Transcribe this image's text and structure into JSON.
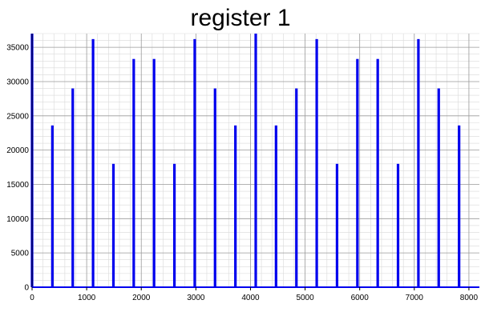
{
  "chart_data": {
    "type": "bar",
    "title": "register 1",
    "xlabel": "",
    "ylabel": "",
    "xlim": [
      0,
      8192
    ],
    "ylim": [
      0,
      37000
    ],
    "grid": true,
    "minor_grid": true,
    "series_color": "#0000ee",
    "x_ticks": [
      0,
      1000,
      2000,
      3000,
      4000,
      5000,
      6000,
      7000,
      8000
    ],
    "x_tick_labels": [
      "0",
      "1000",
      "2000",
      "3000",
      "4000",
      "5000",
      "6000",
      "7000",
      "8000"
    ],
    "y_ticks": [
      0,
      5000,
      10000,
      15000,
      20000,
      25000,
      30000,
      35000
    ],
    "y_tick_labels": [
      "0",
      "5000",
      "10000",
      "15000",
      "20000",
      "25000",
      "30000",
      "35000"
    ],
    "series": [
      {
        "x": [
          0,
          372,
          745,
          1117,
          1490,
          1862,
          2234,
          2607,
          2979,
          3351,
          3724,
          4096,
          4468,
          4841,
          5213,
          5585,
          5958,
          6330,
          6702,
          7075,
          7447,
          7820
        ],
        "values": [
          37000,
          23600,
          29000,
          36200,
          18000,
          33300,
          33300,
          18000,
          36200,
          29000,
          23600,
          37000,
          23600,
          29000,
          36200,
          18000,
          33300,
          33300,
          18000,
          36200,
          29000,
          23600
        ]
      }
    ]
  }
}
